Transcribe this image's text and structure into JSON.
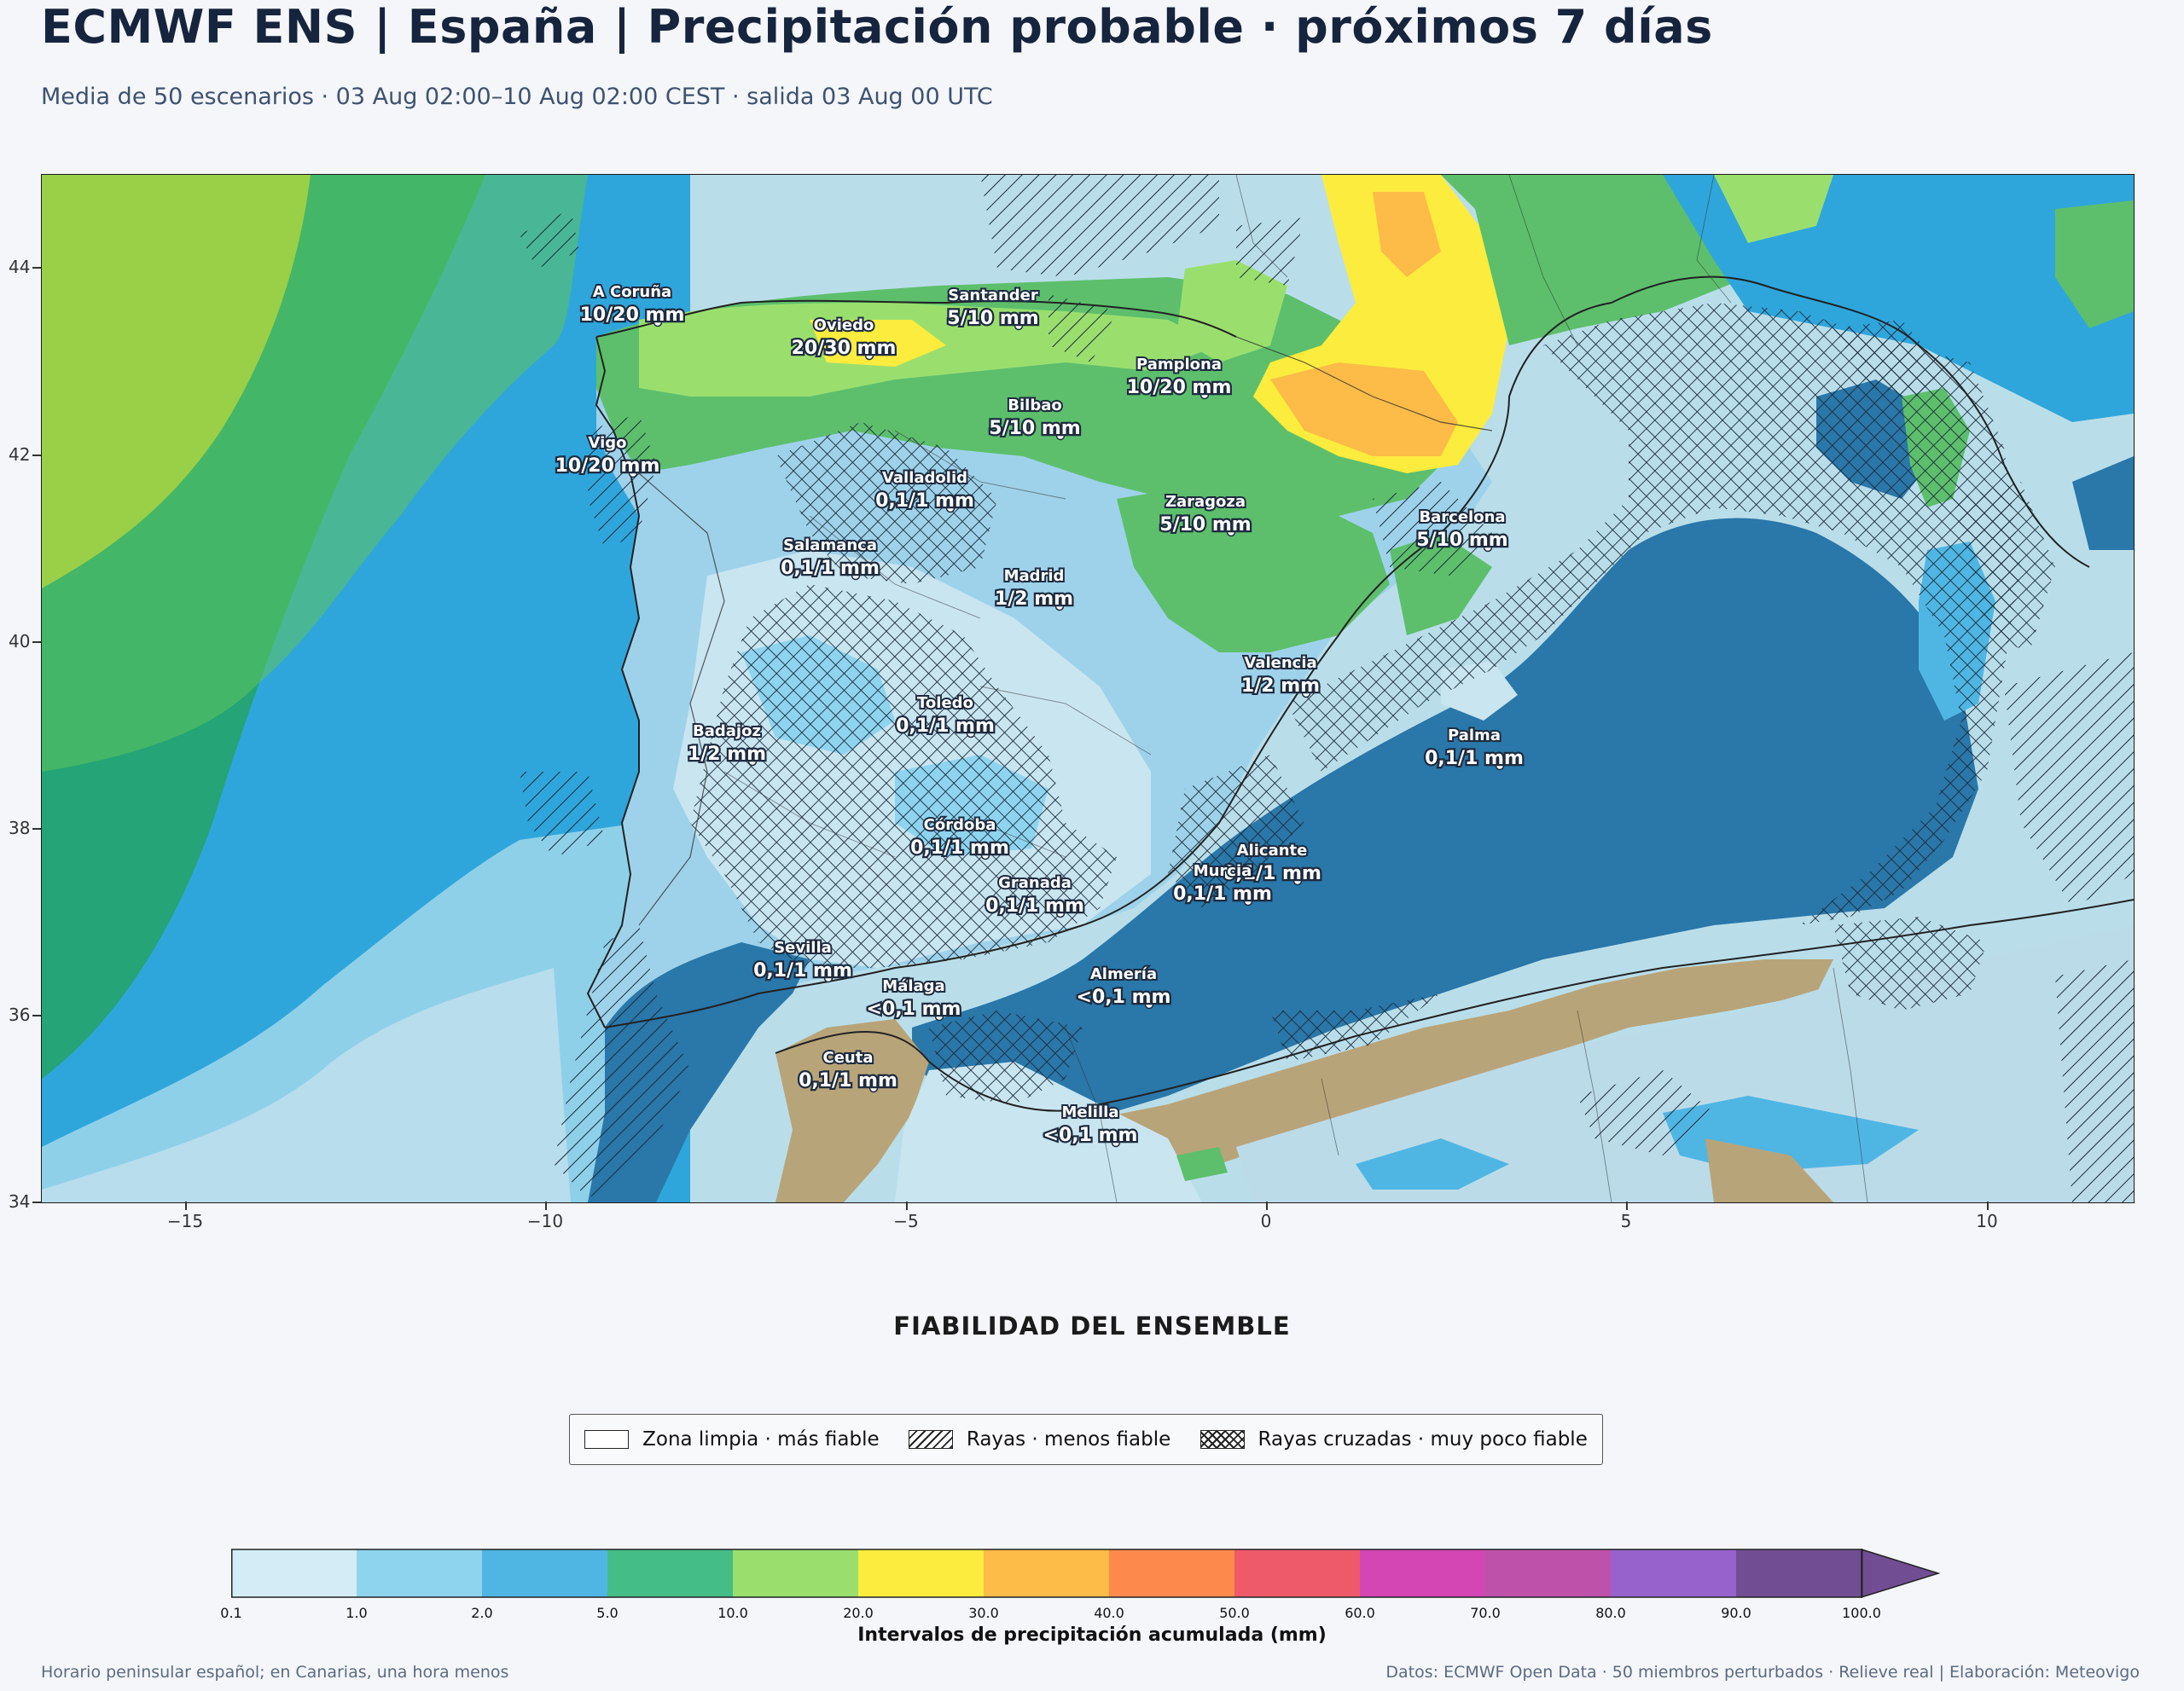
{
  "header": {
    "title": "ECMWF ENS | España | Precipitación probable · próximos 7 días",
    "subtitle": "Media de 50 escenarios · 03 Aug 02:00–10 Aug 02:00 CEST · salida 03 Aug 00 UTC"
  },
  "map": {
    "lon_ticks": [
      "−15",
      "−10",
      "−5",
      "0",
      "5",
      "10"
    ],
    "lat_ticks": [
      "44",
      "42",
      "40",
      "38",
      "36",
      "34"
    ],
    "cities": [
      {
        "name": "A Coruña",
        "value": "10/20 mm"
      },
      {
        "name": "Oviedo",
        "value": "20/30 mm"
      },
      {
        "name": "Santander",
        "value": "5/10 mm"
      },
      {
        "name": "Pamplona",
        "value": "10/20 mm"
      },
      {
        "name": "Bilbao",
        "value": "5/10 mm"
      },
      {
        "name": "Vigo",
        "value": "10/20 mm"
      },
      {
        "name": "Valladolid",
        "value": "0,1/1 mm"
      },
      {
        "name": "Zaragoza",
        "value": "5/10 mm"
      },
      {
        "name": "Barcelona",
        "value": "5/10 mm"
      },
      {
        "name": "Salamanca",
        "value": "0,1/1 mm"
      },
      {
        "name": "Madrid",
        "value": "1/2 mm"
      },
      {
        "name": "Valencia",
        "value": "1/2 mm"
      },
      {
        "name": "Toledo",
        "value": "0,1/1 mm"
      },
      {
        "name": "Badajoz",
        "value": "1/2 mm"
      },
      {
        "name": "Palma",
        "value": "0,1/1 mm"
      },
      {
        "name": "Córdoba",
        "value": "0,1/1 mm"
      },
      {
        "name": "Alicante",
        "value": "0,1/1 mm"
      },
      {
        "name": "Murcia",
        "value": "0,1/1 mm"
      },
      {
        "name": "Granada",
        "value": "0,1/1 mm"
      },
      {
        "name": "Sevilla",
        "value": "0,1/1 mm"
      },
      {
        "name": "Almería",
        "value": "<0,1 mm"
      },
      {
        "name": "Málaga",
        "value": "<0,1 mm"
      },
      {
        "name": "Ceuta",
        "value": "0,1/1 mm"
      },
      {
        "name": "Melilla",
        "value": "<0,1 mm"
      }
    ]
  },
  "reliability": {
    "title": "FIABILIDAD DEL ENSEMBLE",
    "items": [
      {
        "label": "Zona limpia · más fiable"
      },
      {
        "label": "Rayas · menos fiable"
      },
      {
        "label": "Rayas cruzadas · muy poco fiable"
      }
    ]
  },
  "colorbar": {
    "ticks": [
      "0.1",
      "1.0",
      "2.0",
      "5.0",
      "10.0",
      "20.0",
      "30.0",
      "40.0",
      "50.0",
      "60.0",
      "70.0",
      "80.0",
      "90.0",
      "100.0"
    ],
    "colors": [
      "#d4ecf6",
      "#8ed4ef",
      "#4fb6e3",
      "#45bd87",
      "#9adf6e",
      "#fcec3e",
      "#fdbb47",
      "#fd8a4c",
      "#ef5a6a",
      "#d346b4",
      "#be52ab",
      "#9762cc",
      "#714e93"
    ],
    "label": "Intervalos de precipitación acumulada (mm)"
  },
  "footer": {
    "left": "Horario peninsular español; en Canarias, una hora menos",
    "right": "Datos: ECMWF Open Data · 50 miembros perturbados · Relieve real | Elaboración: Meteovigo"
  }
}
